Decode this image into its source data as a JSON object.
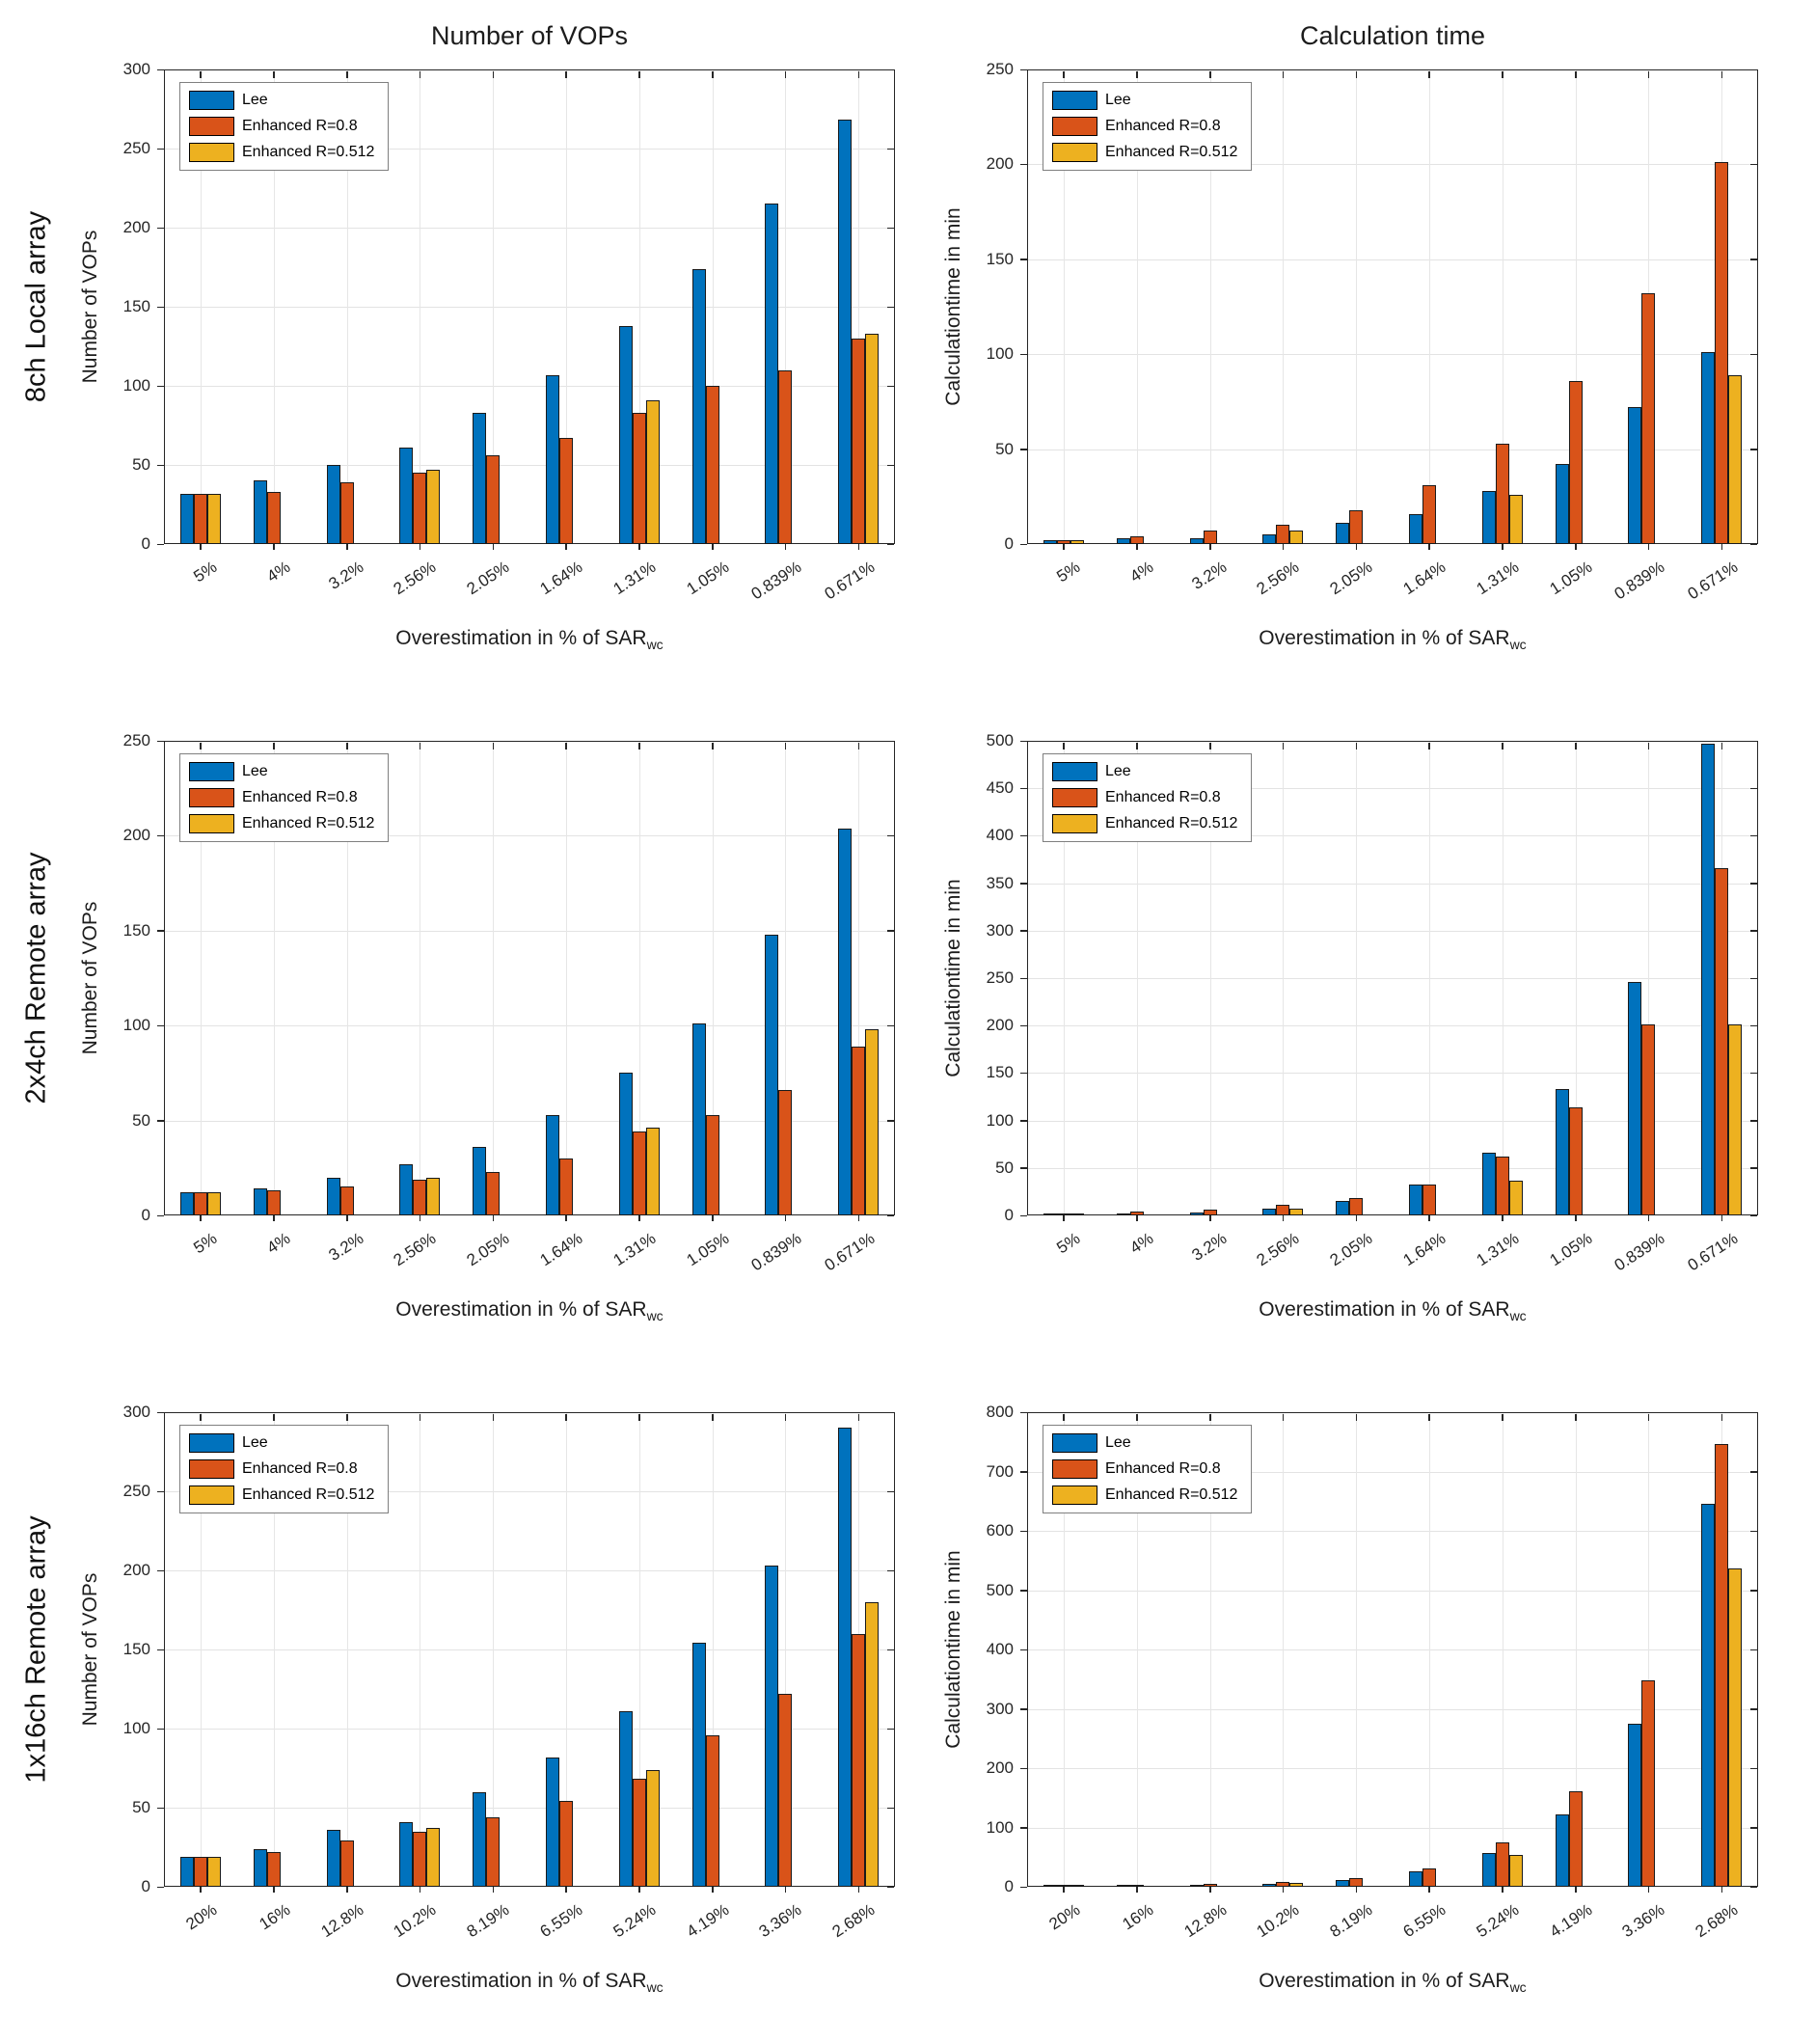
{
  "figure": {
    "column_titles": [
      "Number of VOPs",
      "Calculation time"
    ],
    "row_labels": [
      "8ch Local array",
      "2x4ch Remote array",
      "1x16ch Remote array"
    ],
    "xlabel": {
      "main": "Overestimation in % of SAR",
      "sub": "wc"
    },
    "legend": [
      {
        "label": "Lee",
        "color": "#0072BD"
      },
      {
        "label": "Enhanced R=0.8",
        "color": "#D95319"
      },
      {
        "label": "Enhanced R=0.512",
        "color": "#EDB120"
      }
    ],
    "legend_position": "top-left",
    "grid": true,
    "background": "#ffffff"
  },
  "chart_data": [
    {
      "type": "bar",
      "row_label": "8ch Local array",
      "title": "Number of VOPs",
      "ylabel": "Number of VOPs",
      "ylim": [
        0,
        300
      ],
      "ytick_step": 50,
      "categories": [
        "5%",
        "4%",
        "3.2%",
        "2.56%",
        "2.05%",
        "1.64%",
        "1.31%",
        "1.05%",
        "0.839%",
        "0.671%"
      ],
      "series": [
        {
          "name": "Lee",
          "color": "#0072BD",
          "values": [
            32,
            40,
            50,
            61,
            83,
            107,
            138,
            174,
            215,
            268
          ]
        },
        {
          "name": "Enhanced R=0.8",
          "color": "#D95319",
          "values": [
            32,
            33,
            39,
            45,
            56,
            67,
            83,
            100,
            110,
            130
          ]
        },
        {
          "name": "Enhanced R=0.512",
          "color": "#EDB120",
          "values": [
            32,
            null,
            null,
            47,
            null,
            null,
            91,
            null,
            null,
            133
          ]
        }
      ]
    },
    {
      "type": "bar",
      "row_label": "8ch Local array",
      "title": "Calculation time",
      "ylabel": "Calculationtime in min",
      "ylim": [
        0,
        250
      ],
      "ytick_step": 50,
      "categories": [
        "5%",
        "4%",
        "3.2%",
        "2.56%",
        "2.05%",
        "1.64%",
        "1.31%",
        "1.05%",
        "0.839%",
        "0.671%"
      ],
      "series": [
        {
          "name": "Lee",
          "color": "#0072BD",
          "values": [
            2,
            3,
            3,
            5,
            11,
            16,
            28,
            42,
            72,
            101
          ]
        },
        {
          "name": "Enhanced R=0.8",
          "color": "#D95319",
          "values": [
            2,
            4,
            7,
            10,
            18,
            31,
            53,
            86,
            132,
            201
          ]
        },
        {
          "name": "Enhanced R=0.512",
          "color": "#EDB120",
          "values": [
            2,
            null,
            null,
            7,
            null,
            null,
            26,
            null,
            null,
            89
          ]
        }
      ]
    },
    {
      "type": "bar",
      "row_label": "2x4ch Remote array",
      "title": "",
      "ylabel": "Number of VOPs",
      "ylim": [
        0,
        250
      ],
      "ytick_step": 50,
      "categories": [
        "5%",
        "4%",
        "3.2%",
        "2.56%",
        "2.05%",
        "1.64%",
        "1.31%",
        "1.05%",
        "0.839%",
        "0.671%"
      ],
      "series": [
        {
          "name": "Lee",
          "color": "#0072BD",
          "values": [
            12,
            14,
            20,
            27,
            36,
            53,
            75,
            101,
            148,
            204
          ]
        },
        {
          "name": "Enhanced R=0.8",
          "color": "#D95319",
          "values": [
            12,
            13,
            15,
            19,
            23,
            30,
            44,
            53,
            66,
            89
          ]
        },
        {
          "name": "Enhanced R=0.512",
          "color": "#EDB120",
          "values": [
            12,
            null,
            null,
            20,
            null,
            null,
            46,
            null,
            null,
            98
          ]
        }
      ]
    },
    {
      "type": "bar",
      "row_label": "2x4ch Remote array",
      "title": "",
      "ylabel": "Calculationtime in min",
      "ylim": [
        0,
        500
      ],
      "ytick_step": 50,
      "categories": [
        "5%",
        "4%",
        "3.2%",
        "2.56%",
        "2.05%",
        "1.64%",
        "1.31%",
        "1.05%",
        "0.839%",
        "0.671%"
      ],
      "series": [
        {
          "name": "Lee",
          "color": "#0072BD",
          "values": [
            1,
            2,
            3,
            7,
            15,
            33,
            66,
            133,
            246,
            497
          ]
        },
        {
          "name": "Enhanced R=0.8",
          "color": "#D95319",
          "values": [
            2,
            4,
            6,
            11,
            18,
            33,
            62,
            114,
            201,
            366
          ]
        },
        {
          "name": "Enhanced R=0.512",
          "color": "#EDB120",
          "values": [
            1,
            null,
            null,
            7,
            null,
            null,
            37,
            null,
            null,
            201
          ]
        }
      ]
    },
    {
      "type": "bar",
      "row_label": "1x16ch Remote array",
      "title": "",
      "ylabel": "Number of VOPs",
      "ylim": [
        0,
        300
      ],
      "ytick_step": 50,
      "categories": [
        "20%",
        "16%",
        "12.8%",
        "10.2%",
        "8.19%",
        "6.55%",
        "5.24%",
        "4.19%",
        "3.36%",
        "2.68%"
      ],
      "series": [
        {
          "name": "Lee",
          "color": "#0072BD",
          "values": [
            19,
            24,
            36,
            41,
            60,
            82,
            111,
            154,
            203,
            290
          ]
        },
        {
          "name": "Enhanced R=0.8",
          "color": "#D95319",
          "values": [
            19,
            22,
            29,
            35,
            44,
            54,
            68,
            96,
            122,
            160
          ]
        },
        {
          "name": "Enhanced R=0.512",
          "color": "#EDB120",
          "values": [
            19,
            null,
            null,
            37,
            null,
            null,
            74,
            null,
            null,
            180
          ]
        }
      ]
    },
    {
      "type": "bar",
      "row_label": "1x16ch Remote array",
      "title": "",
      "ylabel": "Calculationtime in min",
      "ylim": [
        0,
        800
      ],
      "ytick_step": 100,
      "categories": [
        "20%",
        "16%",
        "12.8%",
        "10.2%",
        "8.19%",
        "6.55%",
        "5.24%",
        "4.19%",
        "3.36%",
        "2.68%"
      ],
      "series": [
        {
          "name": "Lee",
          "color": "#0072BD",
          "values": [
            3,
            3,
            4,
            5,
            11,
            26,
            57,
            122,
            274,
            645
          ]
        },
        {
          "name": "Enhanced R=0.8",
          "color": "#D95319",
          "values": [
            2,
            4,
            5,
            8,
            14,
            31,
            75,
            161,
            348,
            747
          ]
        },
        {
          "name": "Enhanced R=0.512",
          "color": "#EDB120",
          "values": [
            3,
            null,
            null,
            6,
            null,
            null,
            53,
            null,
            null,
            537
          ]
        }
      ]
    }
  ]
}
